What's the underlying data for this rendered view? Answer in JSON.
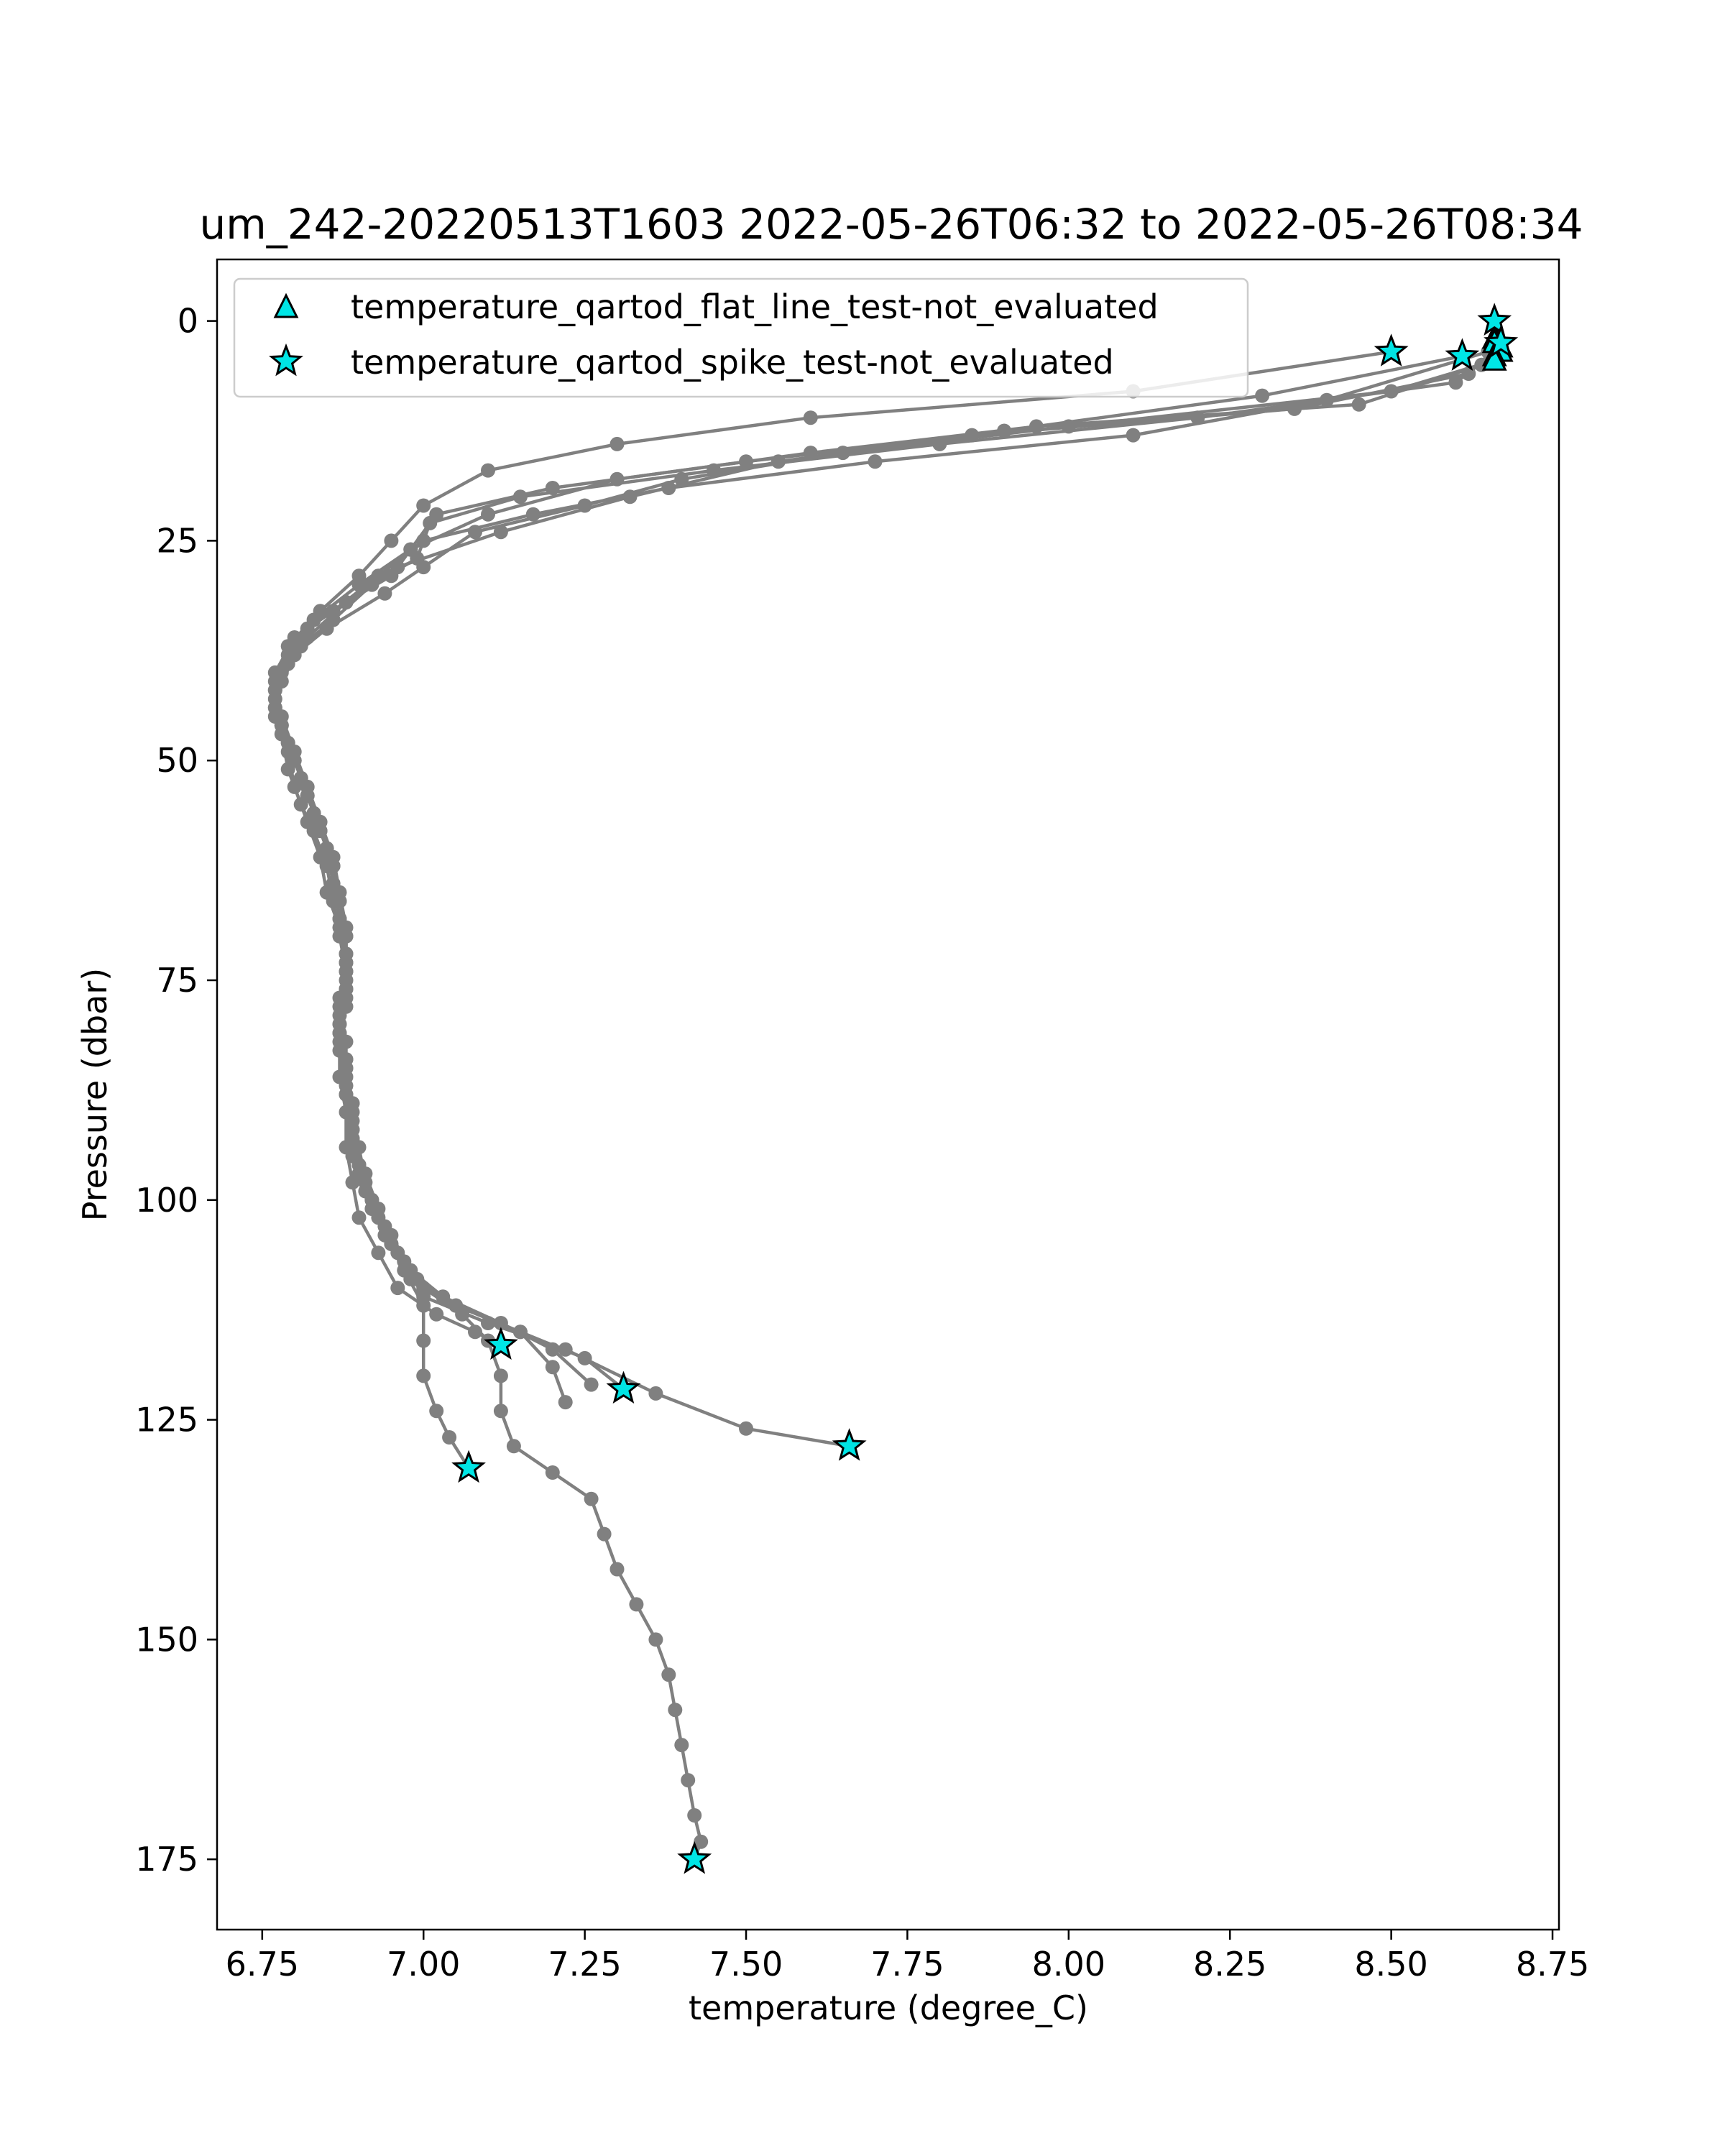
{
  "chart_data": {
    "type": "line",
    "title": "um_242-20220513T1603 2022-05-26T06:32 to 2022-05-26T08:34",
    "xlabel": "temperature (degree_C)",
    "ylabel": "Pressure (dbar)",
    "xlim": [
      6.68,
      8.76
    ],
    "ylim": [
      183,
      -7
    ],
    "y_inverted": true,
    "grid": false,
    "x_ticks": [
      "6.75",
      "7.00",
      "7.25",
      "7.50",
      "7.75",
      "8.00",
      "8.25",
      "8.50",
      "8.75"
    ],
    "y_ticks": [
      "0",
      "25",
      "50",
      "75",
      "100",
      "125",
      "150",
      "175"
    ],
    "line_color": "#808080",
    "marker_color": "#00e5e5",
    "legend": {
      "position": "upper-left",
      "entries": [
        {
          "label": "temperature_qartod_flat_line_test-not_evaluated",
          "marker": "triangle"
        },
        {
          "label": "temperature_qartod_spike_test-not_evaluated",
          "marker": "star"
        }
      ]
    },
    "series": [
      {
        "points": [
          [
            8.66,
            0
          ],
          [
            8.67,
            2.5
          ],
          [
            8.62,
            6
          ],
          [
            8.35,
            10
          ],
          [
            7.85,
            13
          ],
          [
            7.5,
            16
          ],
          [
            7.2,
            19
          ],
          [
            7.02,
            22
          ],
          [
            6.98,
            26
          ],
          [
            6.95,
            29
          ],
          [
            6.88,
            32
          ],
          [
            6.82,
            35
          ],
          [
            6.79,
            39
          ],
          [
            6.77,
            43
          ],
          [
            6.78,
            47
          ],
          [
            6.79,
            51
          ],
          [
            6.81,
            55
          ],
          [
            6.83,
            58
          ],
          [
            6.85,
            62
          ],
          [
            6.86,
            66
          ],
          [
            6.87,
            70
          ],
          [
            6.88,
            74
          ],
          [
            6.88,
            78
          ],
          [
            6.87,
            82
          ],
          [
            6.87,
            86
          ],
          [
            6.88,
            90
          ],
          [
            6.88,
            94
          ],
          [
            6.89,
            98
          ],
          [
            6.9,
            102
          ],
          [
            6.93,
            106
          ],
          [
            6.96,
            110
          ],
          [
            7.02,
            113
          ],
          [
            7.08,
            115
          ],
          [
            7.12,
            116.5
          ]
        ]
      },
      {
        "points": [
          [
            8.67,
            3
          ],
          [
            8.6,
            7
          ],
          [
            8.2,
            11
          ],
          [
            7.8,
            14
          ],
          [
            7.45,
            17
          ],
          [
            7.15,
            20
          ],
          [
            7.01,
            23
          ],
          [
            6.99,
            27
          ],
          [
            6.92,
            30
          ],
          [
            6.86,
            34
          ],
          [
            6.81,
            37
          ],
          [
            6.78,
            41
          ],
          [
            6.77,
            45
          ],
          [
            6.79,
            49
          ],
          [
            6.8,
            53
          ],
          [
            6.82,
            57
          ],
          [
            6.84,
            61
          ],
          [
            6.85,
            65
          ],
          [
            6.87,
            69
          ],
          [
            6.88,
            73
          ],
          [
            6.88,
            77
          ],
          [
            6.87,
            81
          ],
          [
            6.88,
            85
          ],
          [
            6.89,
            89
          ],
          [
            6.89,
            93
          ],
          [
            6.9,
            97
          ],
          [
            6.92,
            101
          ],
          [
            6.95,
            105
          ],
          [
            6.98,
            109
          ],
          [
            7.05,
            112
          ],
          [
            7.15,
            115
          ],
          [
            7.25,
            118
          ],
          [
            7.31,
            121.5
          ]
        ]
      },
      {
        "points": [
          [
            8.66,
            4.5
          ],
          [
            8.5,
            8
          ],
          [
            8.0,
            12
          ],
          [
            7.65,
            15
          ],
          [
            7.4,
            18
          ],
          [
            7.25,
            21
          ],
          [
            7.08,
            24
          ],
          [
            7.0,
            28
          ],
          [
            6.94,
            31
          ],
          [
            6.85,
            35
          ],
          [
            6.8,
            38
          ],
          [
            6.77,
            42
          ],
          [
            6.78,
            46
          ],
          [
            6.8,
            50
          ],
          [
            6.82,
            54
          ],
          [
            6.84,
            58
          ],
          [
            6.86,
            62
          ],
          [
            6.87,
            66
          ],
          [
            6.88,
            70
          ],
          [
            6.88,
            75
          ],
          [
            6.87,
            79
          ],
          [
            6.87,
            83
          ],
          [
            6.88,
            87
          ],
          [
            6.89,
            91
          ],
          [
            6.89,
            95
          ],
          [
            6.91,
            99
          ],
          [
            6.94,
            103
          ],
          [
            6.97,
            107
          ],
          [
            7.0,
            111
          ],
          [
            7.1,
            114
          ],
          [
            7.22,
            117
          ],
          [
            7.36,
            122
          ],
          [
            7.5,
            126
          ],
          [
            7.66,
            128
          ]
        ]
      },
      {
        "points": [
          [
            8.65,
            3.5
          ],
          [
            8.4,
            9
          ],
          [
            8.1,
            13
          ],
          [
            7.7,
            16
          ],
          [
            7.38,
            19
          ],
          [
            7.17,
            22
          ],
          [
            7.0,
            25
          ],
          [
            6.93,
            29
          ],
          [
            6.86,
            33
          ],
          [
            6.8,
            36
          ],
          [
            6.77,
            40
          ],
          [
            6.77,
            44
          ],
          [
            6.79,
            48
          ],
          [
            6.81,
            52
          ],
          [
            6.83,
            56
          ],
          [
            6.85,
            60
          ],
          [
            6.86,
            64
          ],
          [
            6.87,
            68
          ],
          [
            6.88,
            72
          ],
          [
            6.88,
            76
          ],
          [
            6.87,
            80
          ],
          [
            6.88,
            84
          ],
          [
            6.88,
            88
          ],
          [
            6.89,
            92
          ],
          [
            6.9,
            96
          ],
          [
            6.92,
            100
          ],
          [
            6.94,
            104
          ],
          [
            6.97,
            108
          ],
          [
            7.0,
            112
          ],
          [
            7.0,
            116
          ],
          [
            7.0,
            120
          ],
          [
            7.02,
            124
          ],
          [
            7.04,
            127
          ],
          [
            7.07,
            130.5
          ]
        ]
      },
      {
        "points": [
          [
            8.64,
            5
          ],
          [
            8.45,
            9.5
          ],
          [
            7.95,
            12
          ],
          [
            7.6,
            15
          ],
          [
            7.3,
            18
          ],
          [
            7.1,
            22
          ],
          [
            6.98,
            26
          ],
          [
            6.9,
            30
          ],
          [
            6.83,
            34
          ],
          [
            6.79,
            38
          ],
          [
            6.77,
            42
          ],
          [
            6.78,
            46
          ],
          [
            6.8,
            50
          ],
          [
            6.82,
            54
          ],
          [
            6.84,
            58
          ],
          [
            6.86,
            62
          ],
          [
            6.87,
            66
          ],
          [
            6.88,
            70
          ],
          [
            6.88,
            74
          ],
          [
            6.87,
            78
          ],
          [
            6.88,
            82
          ],
          [
            6.88,
            86
          ],
          [
            6.89,
            90
          ],
          [
            6.9,
            94
          ],
          [
            6.91,
            98
          ],
          [
            6.93,
            102
          ],
          [
            6.96,
            106
          ],
          [
            7.0,
            110
          ],
          [
            7.06,
            113
          ],
          [
            7.1,
            116
          ],
          [
            7.12,
            120
          ],
          [
            7.12,
            124
          ],
          [
            7.14,
            128
          ],
          [
            7.2,
            131
          ],
          [
            7.26,
            134
          ],
          [
            7.28,
            138
          ],
          [
            7.3,
            142
          ],
          [
            7.33,
            146
          ],
          [
            7.36,
            150
          ],
          [
            7.38,
            154
          ],
          [
            7.39,
            158
          ],
          [
            7.4,
            162
          ],
          [
            7.41,
            166
          ],
          [
            7.42,
            170
          ],
          [
            7.43,
            173
          ],
          [
            7.42,
            175
          ]
        ]
      },
      {
        "points": [
          [
            8.5,
            3.5
          ],
          [
            8.1,
            8
          ],
          [
            7.6,
            11
          ],
          [
            7.3,
            14
          ],
          [
            7.1,
            17
          ],
          [
            7.0,
            21
          ],
          [
            6.95,
            25
          ],
          [
            6.9,
            29
          ],
          [
            6.84,
            33
          ],
          [
            6.79,
            37
          ],
          [
            6.77,
            41
          ],
          [
            6.78,
            45
          ],
          [
            6.8,
            49
          ],
          [
            6.82,
            53
          ],
          [
            6.84,
            57
          ],
          [
            6.86,
            61
          ],
          [
            6.87,
            65
          ],
          [
            6.88,
            69
          ],
          [
            6.88,
            73
          ],
          [
            6.87,
            77
          ],
          [
            6.87,
            81
          ],
          [
            6.88,
            85
          ],
          [
            6.89,
            89
          ],
          [
            6.89,
            93
          ],
          [
            6.91,
            97
          ],
          [
            6.93,
            101
          ],
          [
            6.95,
            105
          ],
          [
            6.99,
            109
          ],
          [
            7.05,
            112
          ],
          [
            7.15,
            115
          ],
          [
            7.2,
            119
          ],
          [
            7.22,
            123
          ]
        ]
      },
      {
        "points": [
          [
            8.61,
            4
          ],
          [
            8.3,
            8.5
          ],
          [
            7.9,
            12.5
          ],
          [
            7.55,
            16
          ],
          [
            7.32,
            20
          ],
          [
            7.12,
            24
          ],
          [
            6.96,
            28
          ],
          [
            6.88,
            32
          ],
          [
            6.82,
            36
          ],
          [
            6.78,
            40
          ],
          [
            6.77,
            44
          ],
          [
            6.79,
            48
          ],
          [
            6.81,
            52
          ],
          [
            6.83,
            56
          ],
          [
            6.85,
            60
          ],
          [
            6.86,
            64
          ],
          [
            6.87,
            68
          ],
          [
            6.88,
            72
          ],
          [
            6.88,
            76
          ],
          [
            6.87,
            80
          ],
          [
            6.88,
            84
          ],
          [
            6.88,
            88
          ],
          [
            6.89,
            92
          ],
          [
            6.9,
            96
          ],
          [
            6.92,
            100
          ],
          [
            6.95,
            104
          ],
          [
            6.98,
            108
          ],
          [
            7.03,
            111
          ],
          [
            7.12,
            114
          ],
          [
            7.2,
            117
          ],
          [
            7.26,
            121
          ]
        ]
      }
    ],
    "flags": {
      "flat_line": [
        [
          8.66,
          1.8
        ],
        [
          8.66,
          2.3
        ],
        [
          8.67,
          2.8
        ],
        [
          8.67,
          3.3
        ],
        [
          8.66,
          3.8
        ],
        [
          8.66,
          4.3
        ]
      ],
      "spike": [
        [
          8.66,
          0
        ],
        [
          8.67,
          2.5
        ],
        [
          8.5,
          3.5
        ],
        [
          8.61,
          4
        ],
        [
          7.12,
          116.5
        ],
        [
          7.31,
          121.5
        ],
        [
          7.66,
          128
        ],
        [
          7.07,
          130.5
        ],
        [
          7.42,
          175
        ]
      ]
    }
  }
}
